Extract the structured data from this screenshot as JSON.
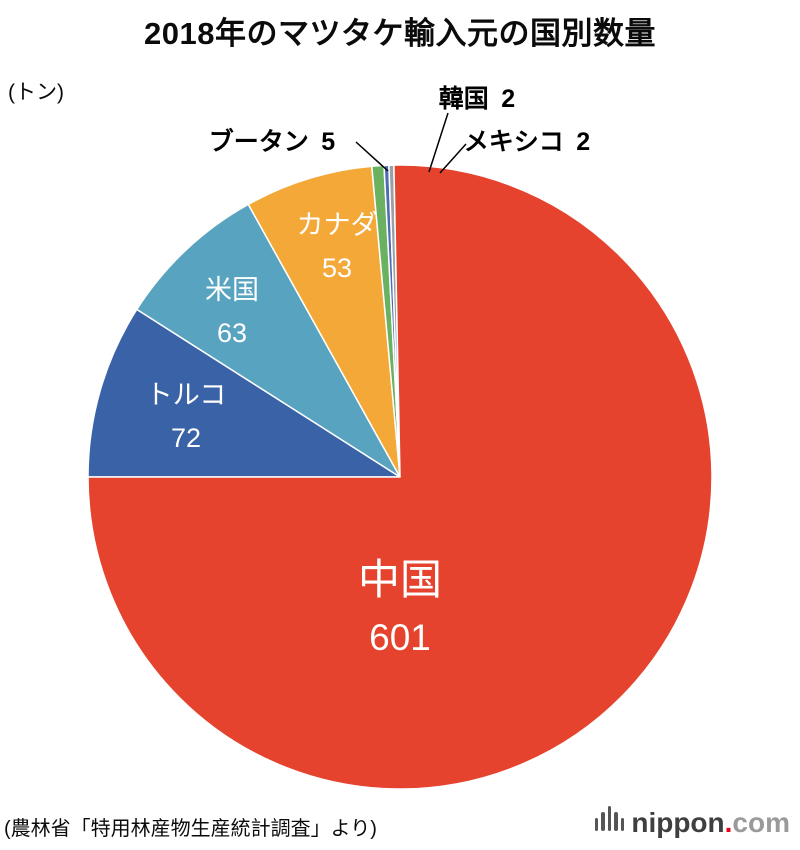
{
  "title": "2018年のマツタケ輸入元の国別数量",
  "unit_label": "(トン)",
  "source": "(農林省「特用林産物生産統計調査」より)",
  "logo": {
    "brand": "nippon",
    "dot": ".",
    "suffix": "com"
  },
  "chart_data": {
    "type": "pie",
    "title": "2018年のマツタケ輸入元の国別数量",
    "unit": "トン",
    "direction": "clockwise",
    "start_angle_deg_clockwise_from_top": 270,
    "slices": [
      {
        "label": "トルコ",
        "value": 72,
        "color": "#3a62a7",
        "label_placement": "inside"
      },
      {
        "label": "米国",
        "value": 63,
        "color": "#58a3bf",
        "label_placement": "inside"
      },
      {
        "label": "カナダ",
        "value": 53,
        "color": "#f3a838",
        "label_placement": "inside"
      },
      {
        "label": "ブータン",
        "value": 5,
        "color": "#6ab162",
        "label_placement": "outside"
      },
      {
        "label": "韓国",
        "value": 2,
        "color": "#4f6db3",
        "label_placement": "outside"
      },
      {
        "label": "メキシコ",
        "value": 2,
        "color": "#9aa0a6",
        "label_placement": "outside"
      },
      {
        "label": "中国",
        "value": 601,
        "color": "#e5432e",
        "label_placement": "inside"
      }
    ]
  }
}
